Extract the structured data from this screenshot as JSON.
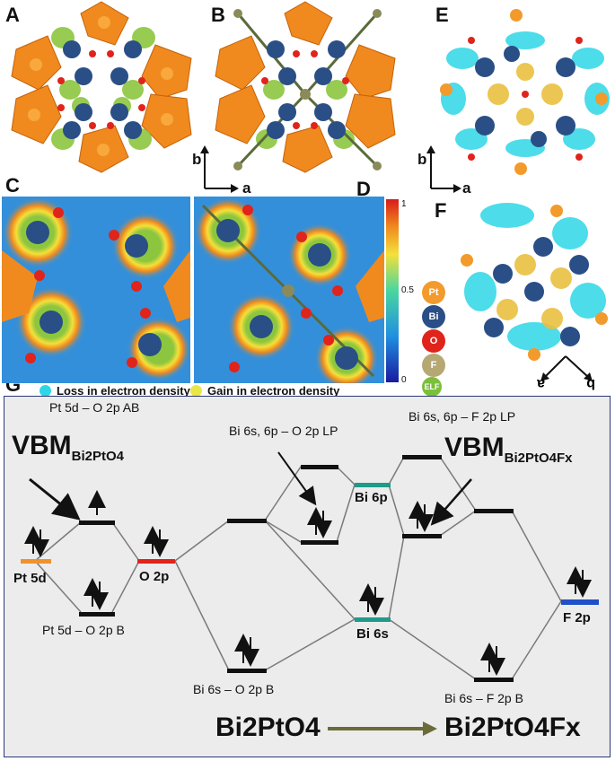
{
  "panel_labels": {
    "a": "A",
    "b": "B",
    "c": "C",
    "d": "D",
    "e": "E",
    "f": "F",
    "g": "G"
  },
  "axes": {
    "b": "b",
    "a": "a"
  },
  "colorbar": {
    "max": "1",
    "mid": "0.5",
    "min": "0"
  },
  "atom_legend": [
    {
      "label": "Pt",
      "color": "#f39a2c"
    },
    {
      "label": "Bi",
      "color": "#2a4e86"
    },
    {
      "label": "O",
      "color": "#e0241b"
    },
    {
      "label": "F",
      "color": "#b6a873"
    },
    {
      "label": "ELF",
      "color": "#7bbf3a"
    }
  ],
  "density_legend": {
    "loss": "Loss in electron density",
    "loss_color": "#2fd6e6",
    "gain": "Gain in electron density",
    "gain_color": "#e9e648"
  },
  "mo_diagram": {
    "pt5d_o2p_ab": "Pt 5d – O 2p AB",
    "vbm1_main": "VBM",
    "vbm1_sub": "Bi2PtO4",
    "bi6s6p_o2p_lp": "Bi 6s, 6p – O 2p LP",
    "bi6s6p_f2p_lp": "Bi 6s, 6p – F 2p LP",
    "vbm2_main": "VBM",
    "vbm2_sub": "Bi2PtO4Fx",
    "pt5d": "Pt 5d",
    "o2p": "O 2p",
    "bi6p": "Bi 6p",
    "bi6s": "Bi 6s",
    "f2p": "F 2p",
    "pt5d_o2p_b": "Pt 5d – O 2p B",
    "bi6s_o2p_b": "Bi 6s – O 2p B",
    "bi6s_f2p_b": "Bi 6s – F 2p B",
    "reactant": "Bi2PtO4",
    "product": "Bi2PtO4Fx",
    "colors": {
      "pt": "#f0922c",
      "o": "#e0241b",
      "bi": "#1f9b8a",
      "f": "#2050c8",
      "level": "#111111",
      "line": "#7a7a7a"
    }
  }
}
